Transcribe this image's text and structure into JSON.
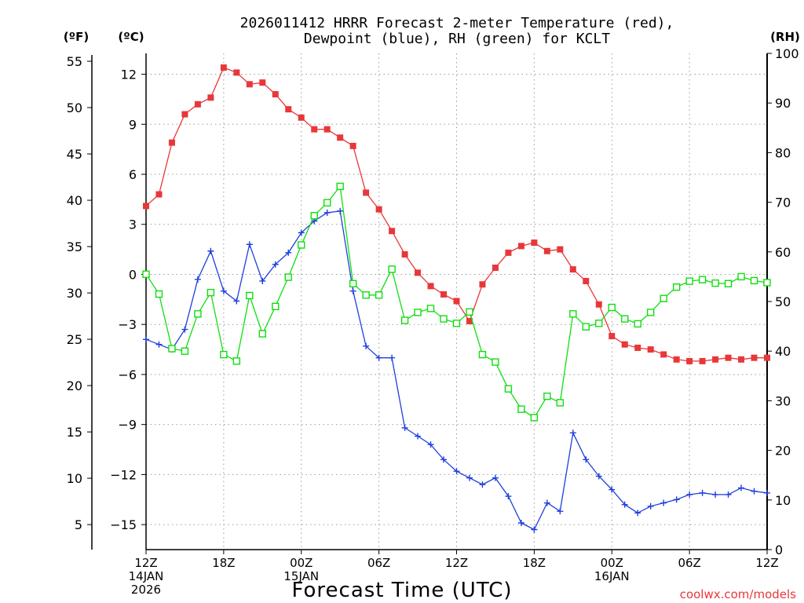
{
  "chart_data": {
    "type": "line",
    "title": [
      "2026011412 HRRR Forecast 2-meter Temperature (red),",
      "Dewpoint (blue), RH (green) for KCLT"
    ],
    "xlabel": "Forecast Time (UTC)",
    "credit": "coolwx.com/models",
    "axis_units": {
      "fahrenheit": "(ºF)",
      "celsius": "(ºC)",
      "rh": "(RH)"
    },
    "x_range_hours": [
      0,
      48
    ],
    "x_ticks": [
      {
        "hour": 0,
        "lines": [
          "12Z",
          "14JAN",
          "2026"
        ]
      },
      {
        "hour": 6,
        "lines": [
          "18Z"
        ]
      },
      {
        "hour": 12,
        "lines": [
          "00Z",
          "15JAN"
        ]
      },
      {
        "hour": 18,
        "lines": [
          "06Z"
        ]
      },
      {
        "hour": 24,
        "lines": [
          "12Z"
        ]
      },
      {
        "hour": 30,
        "lines": [
          "18Z"
        ]
      },
      {
        "hour": 36,
        "lines": [
          "00Z",
          "16JAN"
        ]
      },
      {
        "hour": 42,
        "lines": [
          "06Z"
        ]
      },
      {
        "hour": 48,
        "lines": [
          "12Z"
        ]
      }
    ],
    "y_celsius_range": [
      -16.5,
      13.25
    ],
    "y_celsius_ticks": [
      -15,
      -12,
      -9,
      -6,
      -3,
      0,
      3,
      6,
      9,
      12
    ],
    "y_fahrenheit_ticks": [
      5,
      10,
      15,
      20,
      25,
      30,
      35,
      40,
      45,
      50,
      55
    ],
    "y_rh_range": [
      0,
      100
    ],
    "y_rh_ticks": [
      0,
      10,
      20,
      30,
      40,
      50,
      60,
      70,
      80,
      90,
      100
    ],
    "grid": true,
    "series": [
      {
        "name": "Temperature",
        "axis": "celsius",
        "color": "#e8373a",
        "marker": "filled-square",
        "values": [
          4.1,
          4.8,
          7.9,
          9.6,
          10.2,
          10.6,
          12.4,
          12.1,
          11.4,
          11.5,
          10.8,
          9.9,
          9.4,
          8.7,
          8.7,
          8.2,
          7.7,
          4.9,
          3.9,
          2.6,
          1.2,
          0.1,
          -0.7,
          -1.2,
          -1.6,
          -2.8,
          -0.6,
          0.4,
          1.3,
          1.7,
          1.9,
          1.4,
          1.5,
          0.3,
          -0.4,
          -1.8,
          -3.7,
          -4.2,
          -4.4,
          -4.5,
          -4.8,
          -5.1,
          -5.2,
          -5.2,
          -5.1,
          -5.0,
          -5.1,
          -5.0,
          -5.0
        ]
      },
      {
        "name": "Dewpoint",
        "axis": "celsius",
        "color": "#1f3fdd",
        "marker": "plus",
        "values": [
          -3.9,
          -4.2,
          -4.5,
          -3.3,
          -0.3,
          1.4,
          -1.0,
          -1.6,
          1.8,
          -0.4,
          0.6,
          1.3,
          2.5,
          3.2,
          3.7,
          3.8,
          -1.0,
          -4.3,
          -5.0,
          -5.0,
          -9.2,
          -9.7,
          -10.2,
          -11.1,
          -11.8,
          -12.2,
          -12.6,
          -12.2,
          -13.3,
          -14.9,
          -15.3,
          -13.7,
          -14.2,
          -9.5,
          -11.1,
          -12.1,
          -12.9,
          -13.8,
          -14.3,
          -13.9,
          -13.7,
          -13.5,
          -13.2,
          -13.1,
          -13.2,
          -13.2,
          -12.8,
          -13.0,
          -13.1
        ]
      },
      {
        "name": "RH",
        "axis": "rh",
        "color": "#11dd11",
        "marker": "open-square",
        "values": [
          55.5,
          51.5,
          40.5,
          40.0,
          47.5,
          51.8,
          39.3,
          38.0,
          51.2,
          43.5,
          49.0,
          54.9,
          61.4,
          67.3,
          69.9,
          73.2,
          53.6,
          51.3,
          51.3,
          56.5,
          46.2,
          47.8,
          48.6,
          46.5,
          45.6,
          47.9,
          39.3,
          37.8,
          32.4,
          28.3,
          26.6,
          30.9,
          29.6,
          47.5,
          44.9,
          45.6,
          48.8,
          46.5,
          45.5,
          47.8,
          50.6,
          52.9,
          54.1,
          54.4,
          53.7,
          53.6,
          55.0,
          54.2,
          53.8
        ]
      }
    ]
  }
}
